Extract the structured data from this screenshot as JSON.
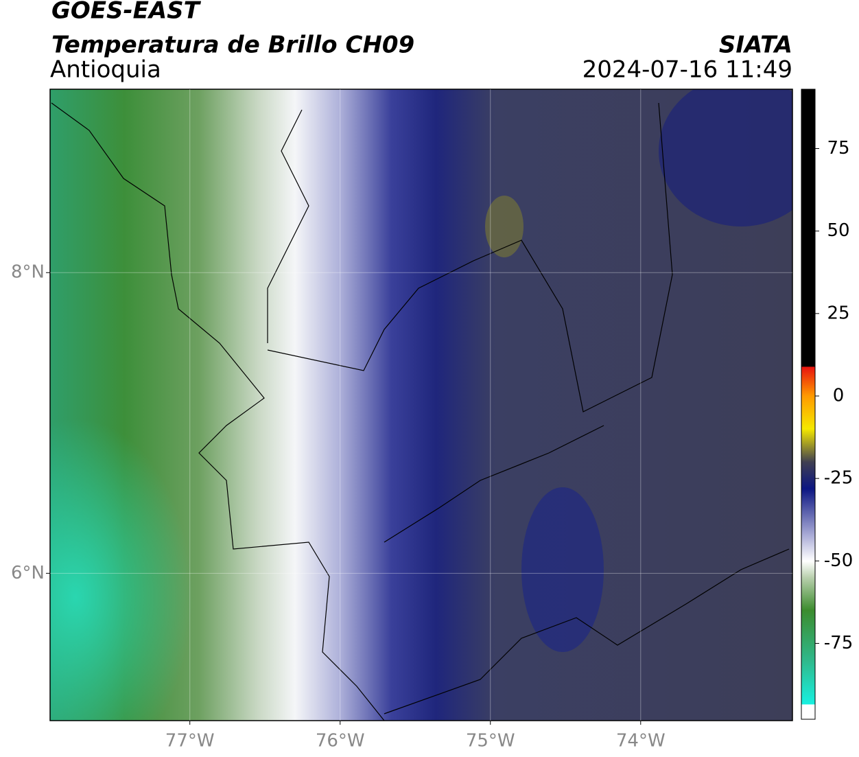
{
  "header": {
    "title": "GOES-EAST",
    "subtitle": "Temperatura de Brillo CH09",
    "region": "Antioquia",
    "source": "SIATA",
    "timestamp": "2024-07-16 11:49"
  },
  "chart_data": {
    "type": "map",
    "xlim": [
      -77.93,
      -72.99
    ],
    "ylim": [
      5.02,
      9.22
    ],
    "xticks": [
      {
        "value": -77,
        "label": "77°W"
      },
      {
        "value": -76,
        "label": "76°W"
      },
      {
        "value": -75,
        "label": "75°W"
      },
      {
        "value": -74,
        "label": "74°W"
      }
    ],
    "yticks": [
      {
        "value": 8,
        "label": "8°N"
      },
      {
        "value": 6,
        "label": "6°N"
      }
    ],
    "grid": true,
    "colorbar": {
      "lim": [
        -98,
        93
      ],
      "ticks": [
        75,
        50,
        25,
        0,
        -25,
        -50,
        -75
      ]
    }
  }
}
